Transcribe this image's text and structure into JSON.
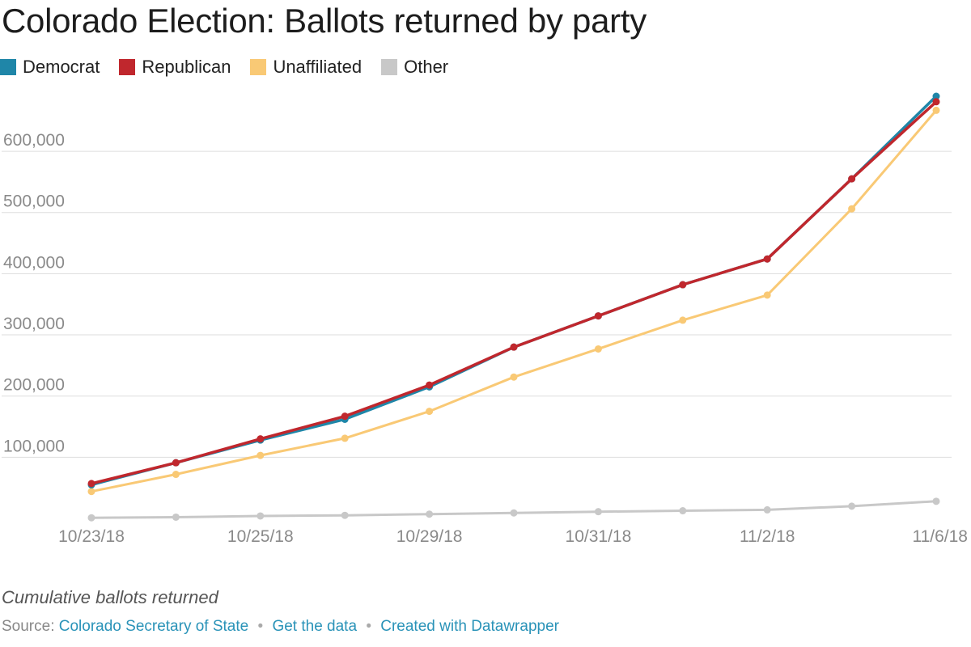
{
  "chart_data": {
    "type": "line",
    "title": "Colorado Election: Ballots returned by party",
    "xlabel": "",
    "ylabel": "",
    "ylim": [
      0,
      690000
    ],
    "y_ticks": [
      100000,
      200000,
      300000,
      400000,
      500000,
      600000
    ],
    "y_tick_labels": [
      "100,000",
      "200,000",
      "300,000",
      "400,000",
      "500,000",
      "600,000"
    ],
    "x_tick_labels": [
      "10/23/18",
      "10/25/18",
      "10/29/18",
      "10/31/18",
      "11/2/18",
      "11/6/18"
    ],
    "x_tick_index": [
      0,
      2,
      4,
      6,
      8,
      10
    ],
    "grid": true,
    "legend_position": "top-left",
    "series": [
      {
        "name": "Democrat",
        "color": "#1f86a8",
        "values": [
          55000,
          91000,
          128000,
          162000,
          215000,
          280000,
          331000,
          382000,
          424000,
          555000,
          690000
        ]
      },
      {
        "name": "Republican",
        "color": "#c0272d",
        "values": [
          57000,
          91000,
          130000,
          167000,
          218000,
          280000,
          331000,
          382000,
          424000,
          555000,
          681000
        ]
      },
      {
        "name": "Unaffiliated",
        "color": "#f9c975",
        "values": [
          44000,
          72000,
          103000,
          131000,
          175000,
          231000,
          277000,
          324000,
          365000,
          506000,
          667000
        ]
      },
      {
        "name": "Other",
        "color": "#c8c8c8",
        "values": [
          1000,
          2000,
          4000,
          5000,
          7000,
          9000,
          11000,
          12500,
          14000,
          20000,
          28000
        ]
      }
    ]
  },
  "notes": "Cumulative ballots returned",
  "footer": {
    "source_label": "Source:",
    "source_link": "Colorado Secretary of State",
    "get_data": "Get the data",
    "created_with": "Created with Datawrapper",
    "separator": "•"
  }
}
